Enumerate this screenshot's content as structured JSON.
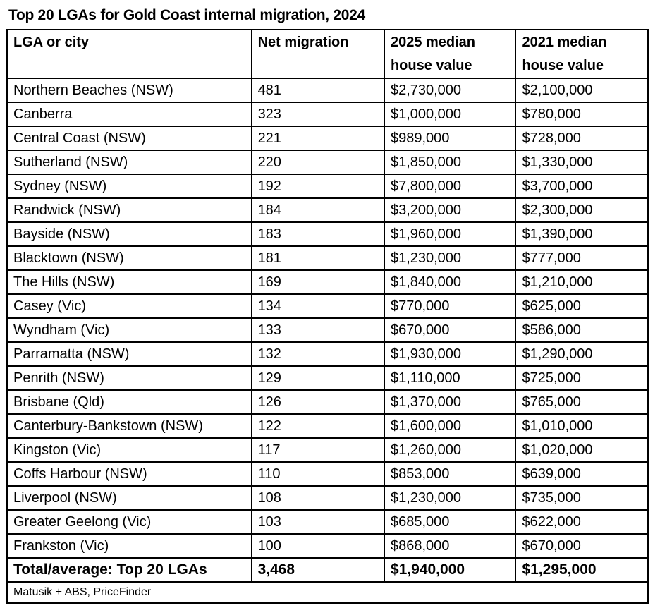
{
  "title": "Top 20 LGAs for Gold Coast internal migration, 2024",
  "chart_data": {
    "type": "table",
    "title": "Top 20 LGAs for Gold Coast internal migration, 2024",
    "columns": [
      "LGA or city",
      "Net migration",
      "2025 median house value",
      "2021 median house value"
    ],
    "rows": [
      [
        "Northern Beaches (NSW)",
        "481",
        "$2,730,000",
        "$2,100,000"
      ],
      [
        "Canberra",
        "323",
        "$1,000,000",
        "$780,000"
      ],
      [
        "Central Coast (NSW)",
        "221",
        "$989,000",
        "$728,000"
      ],
      [
        "Sutherland (NSW)",
        "220",
        "$1,850,000",
        "$1,330,000"
      ],
      [
        "Sydney (NSW)",
        "192",
        "$7,800,000",
        "$3,700,000"
      ],
      [
        "Randwick (NSW)",
        "184",
        "$3,200,000",
        "$2,300,000"
      ],
      [
        "Bayside (NSW)",
        "183",
        "$1,960,000",
        "$1,390,000"
      ],
      [
        "Blacktown (NSW)",
        "181",
        "$1,230,000",
        "$777,000"
      ],
      [
        "The Hills (NSW)",
        "169",
        "$1,840,000",
        "$1,210,000"
      ],
      [
        "Casey (Vic)",
        "134",
        "$770,000",
        "$625,000"
      ],
      [
        "Wyndham (Vic)",
        "133",
        "$670,000",
        "$586,000"
      ],
      [
        "Parramatta (NSW)",
        "132",
        "$1,930,000",
        "$1,290,000"
      ],
      [
        "Penrith (NSW)",
        "129",
        "$1,110,000",
        "$725,000"
      ],
      [
        "Brisbane (Qld)",
        "126",
        "$1,370,000",
        "$765,000"
      ],
      [
        "Canterbury-Bankstown (NSW)",
        "122",
        "$1,600,000",
        "$1,010,000"
      ],
      [
        "Kingston (Vic)",
        "117",
        "$1,260,000",
        "$1,020,000"
      ],
      [
        "Coffs Harbour (NSW)",
        "110",
        "$853,000",
        "$639,000"
      ],
      [
        "Liverpool (NSW)",
        "108",
        "$1,230,000",
        "$735,000"
      ],
      [
        "Greater Geelong (Vic)",
        "103",
        "$685,000",
        "$622,000"
      ],
      [
        "Frankston (Vic)",
        "100",
        "$868,000",
        "$670,000"
      ]
    ],
    "total": [
      "Total/average: Top 20 LGAs",
      "3,468",
      "$1,940,000",
      "$1,295,000"
    ],
    "source": "Matusik + ABS, PriceFinder"
  }
}
